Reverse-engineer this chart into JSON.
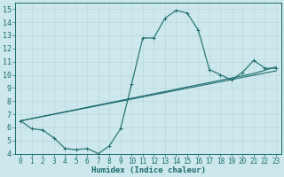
{
  "xlabel": "Humidex (Indice chaleur)",
  "bg_color": "#cce8ec",
  "line_color": "#1a6b6b",
  "grid_color": "#b8d8dc",
  "xlim": [
    -0.5,
    23.5
  ],
  "ylim": [
    4,
    15.5
  ],
  "xticks": [
    0,
    1,
    2,
    3,
    4,
    5,
    6,
    7,
    8,
    9,
    10,
    11,
    12,
    13,
    14,
    15,
    16,
    17,
    18,
    19,
    20,
    21,
    22,
    23
  ],
  "yticks": [
    4,
    5,
    6,
    7,
    8,
    9,
    10,
    11,
    12,
    13,
    14,
    15
  ],
  "line1_x": [
    0,
    1,
    2,
    3,
    4,
    5,
    6,
    7,
    8,
    9,
    10,
    11,
    12,
    13,
    14,
    15,
    16,
    17,
    18,
    19,
    20,
    21,
    22,
    23
  ],
  "line1_y": [
    6.5,
    5.9,
    5.8,
    5.2,
    4.4,
    4.3,
    4.4,
    4.0,
    4.6,
    5.9,
    9.3,
    12.8,
    12.8,
    14.3,
    14.9,
    14.7,
    13.4,
    10.4,
    10.0,
    9.6,
    10.2,
    11.1,
    10.5,
    10.5
  ],
  "line2_x": [
    0,
    23
  ],
  "line2_y": [
    6.5,
    10.3
  ],
  "line3_x": [
    0,
    21,
    23
  ],
  "line3_y": [
    6.5,
    10.1,
    10.6
  ],
  "markersize": 2.0,
  "linewidth": 0.8,
  "xlabel_fontsize": 6.5,
  "tick_fontsize": 5.5
}
